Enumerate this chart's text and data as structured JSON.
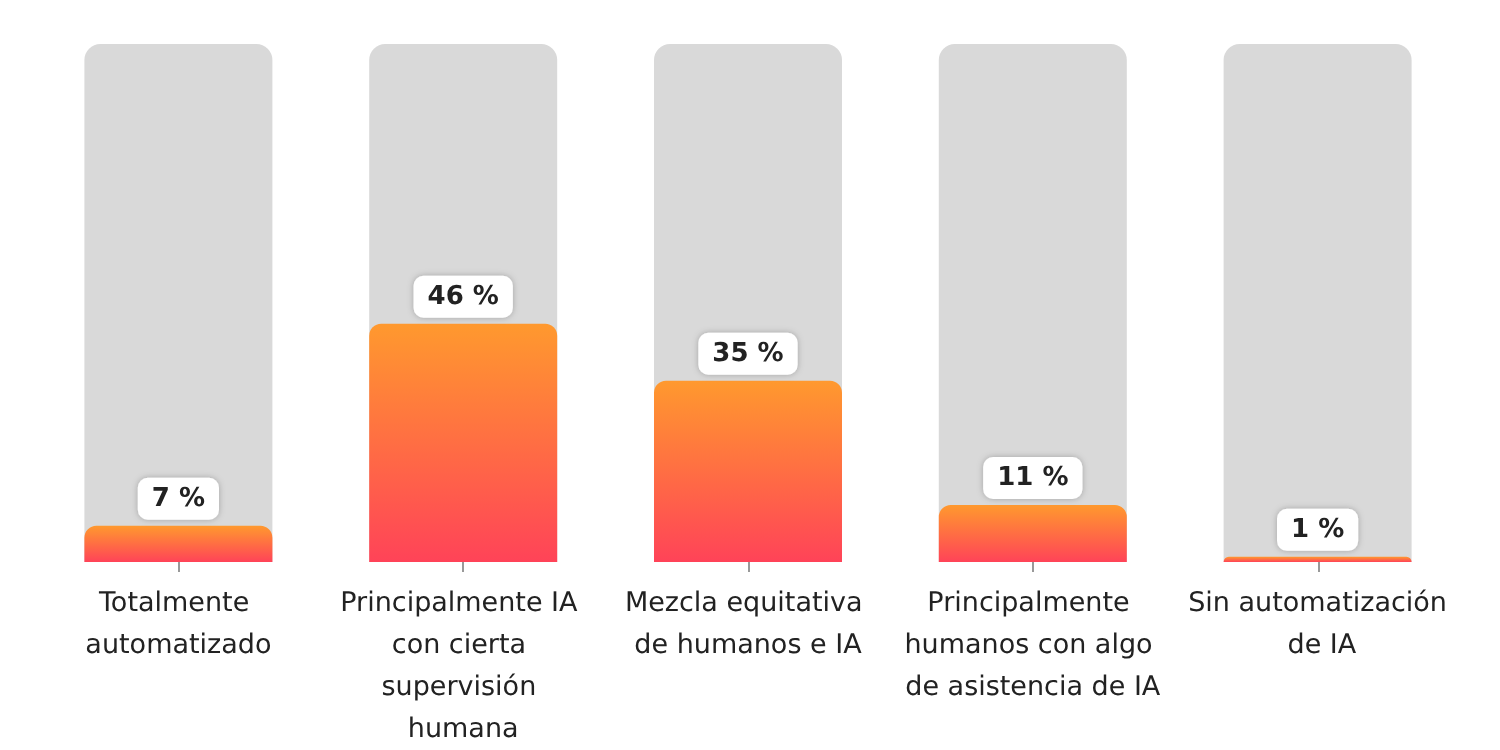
{
  "chart_data": {
    "type": "bar",
    "categories": [
      "Totalmente automatizado",
      "Principalmente IA con cierta supervisión humana",
      "Mezcla equitativa de humanos e IA",
      "Principalmente humanos con algo de asistencia de IA",
      "Sin automatización de IA"
    ],
    "values": [
      7,
      46,
      35,
      11,
      1
    ],
    "value_labels": [
      "7 %",
      "46 %",
      "35 %",
      "11 %",
      "1 %"
    ],
    "color": "#ff7a3d",
    "ylim": [
      0,
      100
    ],
    "tick_labels": "x",
    "grid": false
  }
}
